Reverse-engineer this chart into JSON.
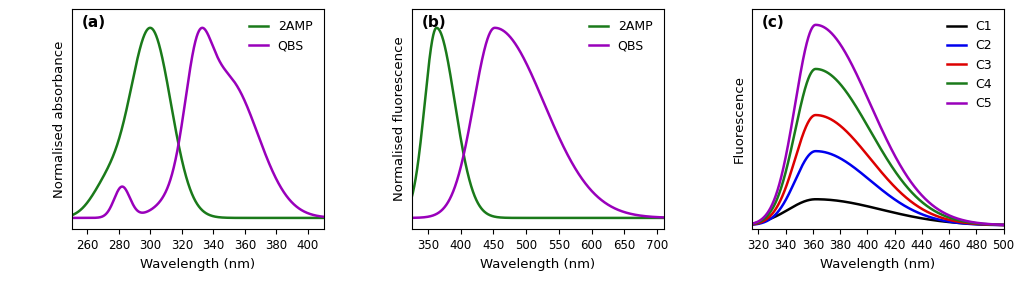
{
  "panel_a": {
    "label": "(a)",
    "xlabel": "Wavelength (nm)",
    "ylabel": "Normalised absorbance",
    "xlim": [
      250,
      410
    ],
    "xticks": [
      260,
      280,
      300,
      320,
      340,
      360,
      380,
      400
    ],
    "green_color": "#1a7a1a",
    "purple_color": "#9900bb",
    "legend": [
      "2AMP",
      "QBS"
    ]
  },
  "panel_b": {
    "label": "(b)",
    "xlabel": "Wavelength (nm)",
    "ylabel": "Normalised fluorescence",
    "xlim": [
      325,
      710
    ],
    "xticks": [
      350,
      400,
      450,
      500,
      550,
      600,
      650,
      700
    ],
    "green_color": "#1a7a1a",
    "purple_color": "#9900bb",
    "legend": [
      "2AMP",
      "QBS"
    ]
  },
  "panel_c": {
    "label": "(c)",
    "xlabel": "Wavelength (nm)",
    "ylabel": "Fluorescence",
    "xlim": [
      315,
      500
    ],
    "xticks": [
      320,
      340,
      360,
      380,
      400,
      420,
      440,
      460,
      480,
      500
    ],
    "colors": [
      "#000000",
      "#0000ee",
      "#dd0000",
      "#1a7a1a",
      "#9900bb"
    ],
    "legend": [
      "C1",
      "C2",
      "C3",
      "C4",
      "C5"
    ],
    "peaks": [
      0.13,
      0.37,
      0.55,
      0.78,
      1.0
    ],
    "peak_wl": 362
  },
  "fig_bgcolor": "#ffffff",
  "font_size": 9.5,
  "lw": 1.8
}
